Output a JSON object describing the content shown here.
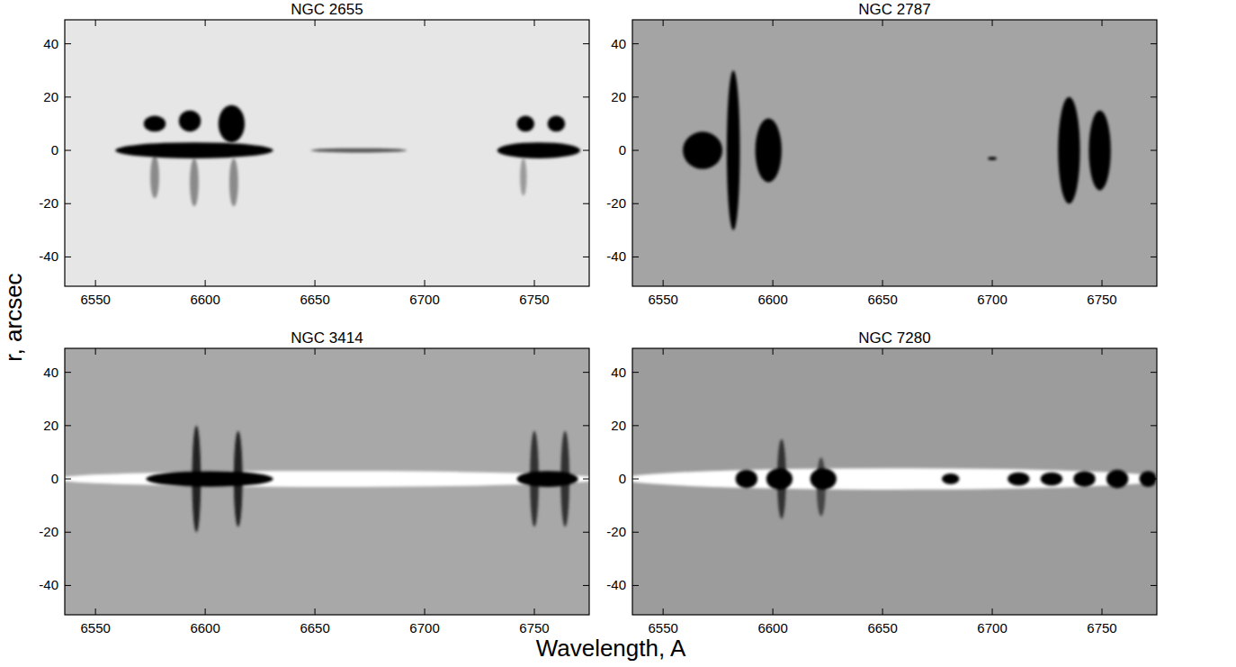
{
  "chart_data": {
    "type": "multi",
    "x_label": "Wavelength, A",
    "y_label": "r, arcsec",
    "panels": [
      {
        "type": "image",
        "title": "NGC 2655",
        "xlim": [
          6536,
          6775
        ],
        "ylim": [
          -51,
          49
        ],
        "xticks": [
          6550,
          6600,
          6650,
          6700,
          6750
        ],
        "yticks": [
          -40,
          -20,
          0,
          20,
          40
        ],
        "color": "#e6e6e6",
        "features": [
          {
            "x": 6670,
            "y": 0,
            "dx": 22,
            "dy": 0.8
          },
          {
            "x": 6577,
            "y": -10,
            "dx": 2,
            "dy": 8
          },
          {
            "x": 6595,
            "y": -12,
            "dx": 2,
            "dy": 9
          },
          {
            "x": 6613,
            "y": -12,
            "dx": 2,
            "dy": 9
          },
          {
            "x": 6745,
            "y": -10,
            "dx": 1.5,
            "dy": 7
          },
          {
            "x": 6595,
            "y": 0,
            "dx": 36,
            "dy": 3
          },
          {
            "x": 6577,
            "y": 10,
            "dx": 5,
            "dy": 3
          },
          {
            "x": 6593,
            "y": 11,
            "dx": 5,
            "dy": 4
          },
          {
            "x": 6612,
            "y": 10,
            "dx": 6,
            "dy": 7
          },
          {
            "x": 6752,
            "y": 0,
            "dx": 19,
            "dy": 3
          },
          {
            "x": 6746,
            "y": 10,
            "dx": 4,
            "dy": 3
          },
          {
            "x": 6760,
            "y": 10,
            "dx": 4,
            "dy": 3
          }
        ],
        "colors": [
          "#555555",
          "#8a8a8a",
          "#8a8a8a",
          "#8a8a8a",
          "#9a9a9a",
          "#000000",
          "#000000",
          "#000000",
          "#000000",
          "#000000",
          "#000000",
          "#000000"
        ]
      },
      {
        "type": "image",
        "title": "NGC 2787",
        "xlim": [
          6536,
          6775
        ],
        "ylim": [
          -51,
          49
        ],
        "xticks": [
          6550,
          6600,
          6650,
          6700,
          6750
        ],
        "yticks": [
          -40,
          -20,
          0,
          20,
          40
        ],
        "color": "#a4a4a4",
        "features": [
          {
            "x": 6568,
            "y": 0,
            "dx": 9,
            "dy": 7
          },
          {
            "x": 6582,
            "y": 0,
            "dx": 3,
            "dy": 30
          },
          {
            "x": 6598,
            "y": 0,
            "dx": 6,
            "dy": 12
          },
          {
            "x": 6735,
            "y": 0,
            "dx": 5,
            "dy": 20
          },
          {
            "x": 6749,
            "y": 0,
            "dx": 5,
            "dy": 15
          },
          {
            "x": 6700,
            "y": -3,
            "dx": 2,
            "dy": 0.6
          }
        ],
        "colors": [
          "#000000",
          "#000000",
          "#000000",
          "#000000",
          "#000000",
          "#000000"
        ]
      },
      {
        "type": "image",
        "title": "NGC 3414",
        "xlim": [
          6536,
          6775
        ],
        "ylim": [
          -51,
          49
        ],
        "xticks": [
          6550,
          6600,
          6650,
          6700,
          6750
        ],
        "yticks": [
          -40,
          -20,
          0,
          20,
          40
        ],
        "color": "#a8a8a8",
        "features": [
          {
            "x": 6656,
            "y": 0,
            "dx": 125,
            "dy": 3
          },
          {
            "x": 6596,
            "y": 0,
            "dx": 2,
            "dy": 20
          },
          {
            "x": 6615,
            "y": 0,
            "dx": 2,
            "dy": 18
          },
          {
            "x": 6750,
            "y": 0,
            "dx": 2,
            "dy": 18
          },
          {
            "x": 6764,
            "y": 0,
            "dx": 2,
            "dy": 18
          },
          {
            "x": 6602,
            "y": 0,
            "dx": 29,
            "dy": 3
          },
          {
            "x": 6756,
            "y": 0,
            "dx": 14,
            "dy": 3
          }
        ],
        "colors": [
          "#ffffff",
          "#222222",
          "#222222",
          "#333333",
          "#333333",
          "#000000",
          "#000000"
        ]
      },
      {
        "type": "image",
        "title": "NGC 7280",
        "xlim": [
          6536,
          6775
        ],
        "ylim": [
          -51,
          49
        ],
        "xticks": [
          6550,
          6600,
          6650,
          6700,
          6750
        ],
        "yticks": [
          -40,
          -20,
          0,
          20,
          40
        ],
        "color": "#9c9c9c",
        "features": [
          {
            "x": 6656,
            "y": 0,
            "dx": 125,
            "dy": 4
          },
          {
            "x": 6604,
            "y": 0,
            "dx": 2,
            "dy": 15
          },
          {
            "x": 6622,
            "y": -3,
            "dx": 2,
            "dy": 11
          },
          {
            "x": 6588,
            "y": 0,
            "dx": 5,
            "dy": 3.5
          },
          {
            "x": 6603,
            "y": 0,
            "dx": 6,
            "dy": 4
          },
          {
            "x": 6623,
            "y": 0,
            "dx": 6,
            "dy": 4
          },
          {
            "x": 6681,
            "y": 0,
            "dx": 4,
            "dy": 2
          },
          {
            "x": 6712,
            "y": 0,
            "dx": 5,
            "dy": 2.5
          },
          {
            "x": 6727,
            "y": 0,
            "dx": 5,
            "dy": 2.5
          },
          {
            "x": 6742,
            "y": 0,
            "dx": 5,
            "dy": 3
          },
          {
            "x": 6757,
            "y": 0,
            "dx": 5,
            "dy": 3.5
          },
          {
            "x": 6771,
            "y": 0,
            "dx": 4,
            "dy": 3
          }
        ],
        "colors": [
          "#ffffff",
          "#333333",
          "#444444",
          "#000000",
          "#000000",
          "#000000",
          "#000000",
          "#000000",
          "#000000",
          "#000000",
          "#000000",
          "#000000"
        ]
      }
    ]
  }
}
